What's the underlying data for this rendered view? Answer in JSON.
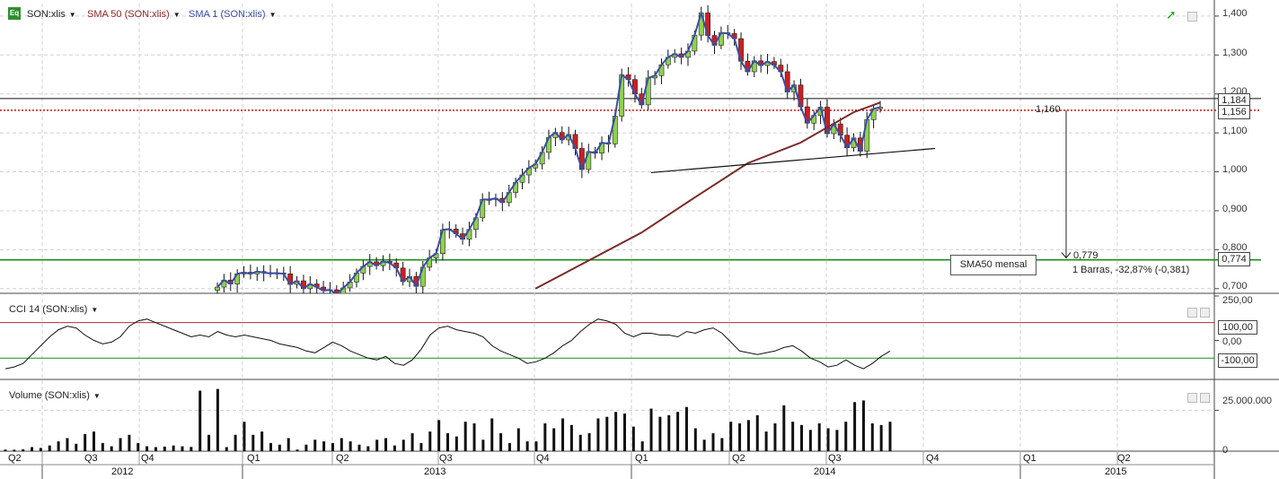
{
  "header": {
    "logo_text": "Eq",
    "symbol_label": "SON:xlis",
    "sma50_label": "SMA 50 (SON:xlis)",
    "sma1_label": "SMA 1 (SON:xlis)",
    "dropdown_glyph": "▼"
  },
  "colors": {
    "up_candle": "#8fd14f",
    "down_candle": "#cc1f1f",
    "sma1": "#3a4fa3",
    "sma50": "#7a2a2a",
    "support_green": "#1a8f1a",
    "dotted_red": "#c00000",
    "cci_line": "#111111",
    "volume_bar": "#111111",
    "grid": "#d0d0d0"
  },
  "price_panel": {
    "y_ticks": [
      "1,400",
      "1,300",
      "1,200",
      "1,100",
      "1,000",
      "0,900",
      "0,800",
      "0,700"
    ],
    "y_tick_values": [
      1.4,
      1.3,
      1.2,
      1.1,
      1.0,
      0.9,
      0.8,
      0.7
    ],
    "ylim": [
      0.688,
      1.432
    ],
    "price_box_upper": "1,184",
    "price_box_lower": "1,156",
    "price_box_green": "0,774",
    "dotted_level_label": "1,160",
    "target_label": "0,779",
    "measure_label": "1 Barras, -32,87% (-0,381)",
    "annotation_box": "SMA50 mensal",
    "horizontal_line_value": 1.188,
    "dotted_line_value": 1.158,
    "green_line_value": 0.774
  },
  "cci_panel": {
    "title": "CCI 14 (SON:xlis)",
    "y_ticks": [
      "250,00",
      "0,00"
    ],
    "upper_box": "100,00",
    "lower_box": "-100,00",
    "ylim": [
      -220,
      260
    ],
    "upper_level": 100,
    "lower_level": -100
  },
  "volume_panel": {
    "title": "Volume (SON:xlis)",
    "y_ticks": [
      "25.000.000",
      "0"
    ],
    "ylim": [
      0,
      40000000
    ]
  },
  "x_axis": {
    "quarters": [
      "Q2",
      "Q3",
      "Q4",
      "Q1",
      "Q2",
      "Q3",
      "Q4",
      "Q1",
      "Q2",
      "Q3",
      "Q4",
      "Q1",
      "Q2"
    ],
    "years": [
      "2012",
      "2013",
      "2014",
      "2015"
    ]
  },
  "chart_data": {
    "type": "line",
    "title": "",
    "xlabel": "",
    "ylabel": "",
    "grid": true,
    "series": [
      {
        "name": "SMA 1 (SON:xlis)",
        "values": [
          0.704,
          0.722,
          0.712,
          0.738,
          0.742,
          0.738,
          0.744,
          0.741,
          0.739,
          0.74,
          0.738,
          0.711,
          0.72,
          0.7,
          0.712,
          0.704,
          0.695,
          0.697,
          0.685,
          0.702,
          0.717,
          0.74,
          0.757,
          0.769,
          0.759,
          0.77,
          0.766,
          0.753,
          0.718,
          0.731,
          0.706,
          0.755,
          0.779,
          0.79,
          0.851,
          0.853,
          0.841,
          0.827,
          0.852,
          0.882,
          0.929,
          0.929,
          0.932,
          0.921,
          0.947,
          0.973,
          0.992,
          1.01,
          1.02,
          1.05,
          1.088,
          1.101,
          1.082,
          1.096,
          1.06,
          1.006,
          1.052,
          1.048,
          1.075,
          1.072,
          1.143,
          1.249,
          1.237,
          1.2,
          1.172,
          1.241,
          1.247,
          1.275,
          1.294,
          1.303,
          1.294,
          1.31,
          1.351,
          1.408,
          1.35,
          1.325,
          1.357,
          1.355,
          1.342,
          1.284,
          1.257,
          1.285,
          1.273,
          1.283,
          1.274,
          1.257,
          1.205,
          1.223,
          1.167,
          1.125,
          1.145,
          1.166,
          1.098,
          1.123,
          1.094,
          1.062,
          1.087,
          1.053,
          1.134,
          1.162,
          1.166
        ]
      },
      {
        "name": "SMA 50 (SON:xlis)",
        "x_index": [
          48,
          56,
          64,
          72,
          80,
          88,
          96,
          100
        ],
        "values": [
          0.7,
          0.772,
          0.844,
          0.934,
          1.022,
          1.075,
          1.153,
          1.178
        ]
      }
    ],
    "trendline": {
      "start_index": 63,
      "end_index": 107,
      "start_value": 0.998,
      "end_value": 1.06
    },
    "cci_values": [
      -160,
      -150,
      -130,
      -80,
      -30,
      20,
      60,
      80,
      70,
      30,
      0,
      -20,
      -10,
      20,
      80,
      110,
      120,
      100,
      80,
      60,
      40,
      20,
      30,
      20,
      50,
      30,
      20,
      30,
      20,
      10,
      0,
      -20,
      -30,
      -40,
      -60,
      -70,
      -40,
      -10,
      -30,
      -60,
      -80,
      -100,
      -110,
      -90,
      -130,
      -140,
      -110,
      -50,
      30,
      70,
      80,
      60,
      50,
      40,
      20,
      -30,
      -60,
      -80,
      -100,
      -130,
      -120,
      -100,
      -70,
      -30,
      0,
      50,
      90,
      120,
      110,
      90,
      40,
      20,
      40,
      40,
      30,
      30,
      20,
      50,
      40,
      60,
      70,
      40,
      -10,
      -60,
      -70,
      -80,
      -70,
      -60,
      -40,
      -30,
      -60,
      -100,
      -120,
      -150,
      -140,
      -110,
      -140,
      -160,
      -130,
      -90,
      -60
    ],
    "volume_values": [
      1000000,
      900000,
      1200000,
      2500000,
      2000000,
      3500000,
      6000000,
      8000000,
      4500000,
      10500000,
      12000000,
      5000000,
      3000000,
      8000000,
      10000000,
      5000000,
      3000000,
      2500000,
      2800000,
      3500000,
      3000000,
      2600000,
      37000000,
      10000000,
      38000000,
      2500000,
      10000000,
      18000000,
      10000000,
      12000000,
      5000000,
      4000000,
      8000000,
      1000000,
      4000000,
      7000000,
      6000000,
      5000000,
      8000000,
      6000000,
      4000000,
      3000000,
      7000000,
      8000000,
      3500000,
      7000000,
      11000000,
      5000000,
      12000000,
      19000000,
      11000000,
      9000000,
      18000000,
      17000000,
      7000000,
      20000000,
      11000000,
      5000000,
      14000000,
      6000000,
      6000000,
      17000000,
      14000000,
      20000000,
      16000000,
      10000000,
      11000000,
      20000000,
      21000000,
      24000000,
      23000000,
      15000000,
      6000000,
      26000000,
      21000000,
      22000000,
      24000000,
      27000000,
      14000000,
      7000000,
      11000000,
      8000000,
      18000000,
      17000000,
      19000000,
      22000000,
      12000000,
      17000000,
      28000000,
      18000000,
      16000000,
      13000000,
      17000000,
      14000000,
      13000000,
      18000000,
      30000000,
      31000000,
      17000000,
      16000000,
      18000000
    ]
  }
}
